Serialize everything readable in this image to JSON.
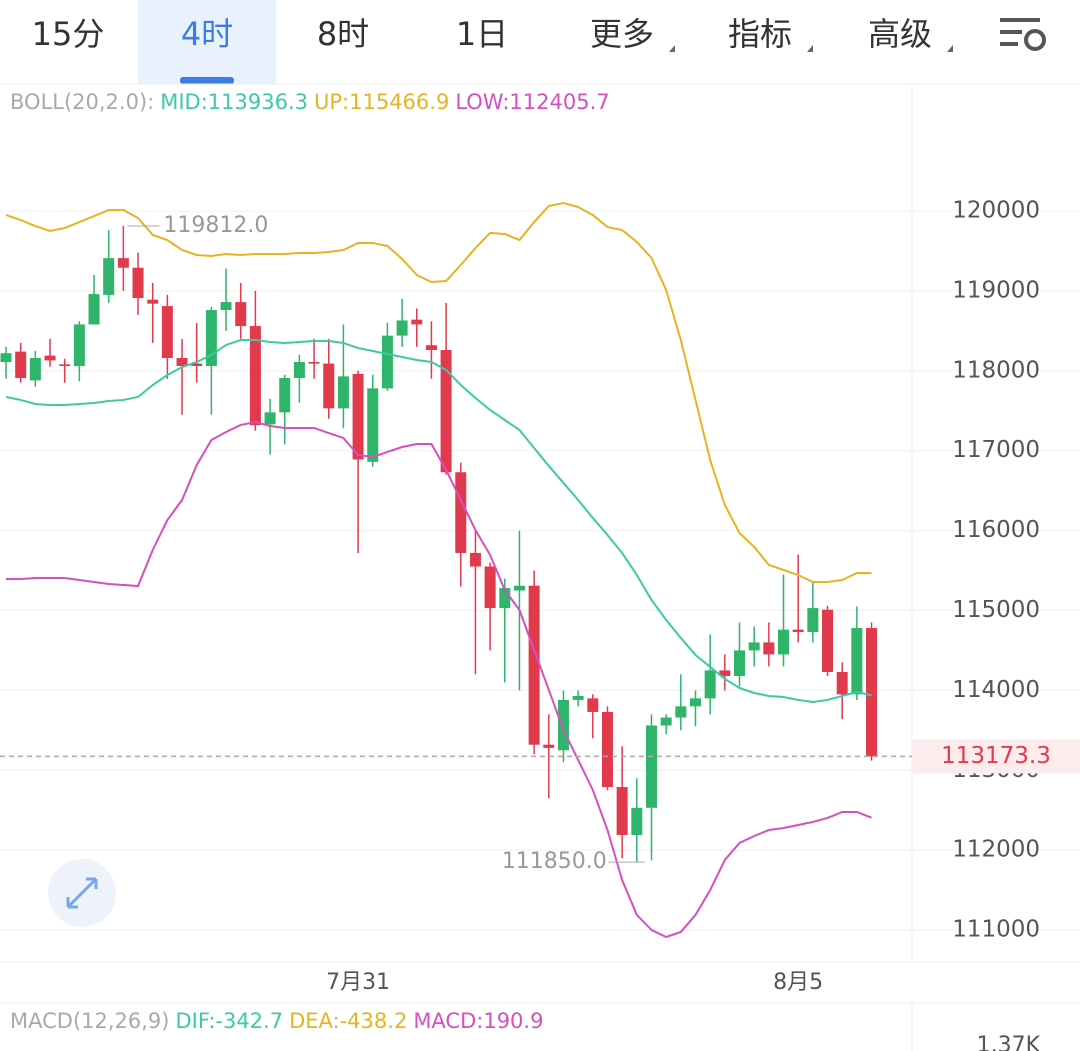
{
  "tabs": [
    "15分",
    "4时",
    "8时",
    "1日",
    "更多",
    "指标",
    "高级"
  ],
  "active_tab": 1,
  "chart_data": {
    "type": "candlestick",
    "indicator": {
      "text": "BOLL(20,2.0):",
      "color": "#a9a9a9"
    },
    "categories": [
      null,
      null,
      null,
      null,
      null,
      null,
      null,
      null,
      null,
      null,
      null,
      null,
      null,
      null,
      null,
      null,
      null,
      null,
      null,
      null,
      null,
      null,
      null,
      null,
      "7月31",
      null,
      null,
      null,
      null,
      null,
      null,
      null,
      null,
      null,
      null,
      null,
      null,
      null,
      null,
      null,
      null,
      null,
      null,
      null,
      null,
      null,
      null,
      null,
      null,
      null,
      null,
      null,
      null,
      null,
      "8月5",
      null,
      null,
      null,
      null,
      null
    ],
    "open": [
      118110,
      118240,
      117880,
      118190,
      118080,
      118060,
      118580,
      118950,
      119410,
      119290,
      118890,
      118810,
      118160,
      118090,
      118060,
      118760,
      118860,
      118560,
      117330,
      117480,
      117910,
      118110,
      118090,
      117530,
      117960,
      116860,
      117780,
      118440,
      118640,
      118320,
      118260,
      116730,
      115720,
      115550,
      115030,
      115250,
      115310,
      113320,
      113250,
      113880,
      113900,
      113730,
      112790,
      112190,
      112530,
      113560,
      113660,
      113800,
      113900,
      114250,
      114180,
      114500,
      114600,
      114450,
      114760,
      114730,
      115010,
      114230,
      113950,
      114780
    ],
    "high": [
      118300,
      118350,
      118250,
      118400,
      118150,
      118620,
      119200,
      119760,
      119812,
      119480,
      119100,
      118950,
      118400,
      118600,
      118800,
      119280,
      119100,
      119000,
      117650,
      117950,
      118200,
      118400,
      118400,
      118580,
      118000,
      117950,
      118600,
      118900,
      118780,
      118620,
      118850,
      116850,
      116000,
      115600,
      115400,
      116000,
      115500,
      113700,
      114000,
      114000,
      113950,
      113800,
      113300,
      112900,
      113700,
      113700,
      114200,
      114000,
      114700,
      114450,
      114850,
      114800,
      114850,
      115450,
      115700,
      115350,
      115060,
      114350,
      115050,
      114850
    ],
    "low": [
      117900,
      117850,
      117800,
      118050,
      117850,
      117870,
      118580,
      118850,
      119000,
      118700,
      118350,
      117900,
      117450,
      117850,
      117450,
      118500,
      118400,
      117250,
      116950,
      117080,
      117600,
      117900,
      117400,
      117280,
      115720,
      116800,
      117750,
      118300,
      118300,
      117900,
      116700,
      115300,
      114200,
      114500,
      114100,
      114000,
      113200,
      112650,
      113100,
      113800,
      113400,
      112750,
      111900,
      111850,
      111870,
      113450,
      113500,
      113550,
      113700,
      114000,
      114050,
      114300,
      114300,
      114300,
      114600,
      114600,
      114180,
      113640,
      113880,
      113120
    ],
    "close": [
      118220,
      117910,
      118160,
      118130,
      118060,
      118580,
      118960,
      119410,
      119290,
      118910,
      118840,
      118160,
      118060,
      118060,
      118760,
      118860,
      118560,
      117320,
      117480,
      117910,
      118110,
      118090,
      117530,
      117930,
      116890,
      117780,
      118440,
      118630,
      118580,
      118260,
      116730,
      115720,
      115550,
      115030,
      115280,
      115310,
      113320,
      113280,
      113880,
      113930,
      113730,
      112790,
      112190,
      112530,
      113560,
      113660,
      113800,
      113900,
      114250,
      114180,
      114500,
      114600,
      114450,
      114760,
      114730,
      115030,
      114230,
      113950,
      114780,
      113173.3
    ],
    "up_color": "#2fb56a",
    "down_color": "#e03a4c",
    "series": [
      {
        "name": "MID:113936.3",
        "color": "#3dc9a7",
        "values": [
          117672,
          117635,
          117584,
          117572,
          117572,
          117584,
          117597,
          117622,
          117635,
          117672,
          117822,
          117947,
          118047,
          118110,
          118198,
          118323,
          118385,
          118385,
          118360,
          118348,
          118360,
          118373,
          118373,
          118348,
          118285,
          118248,
          118210,
          118173,
          118135,
          118110,
          118010,
          117822,
          117659,
          117509,
          117384,
          117259,
          117034,
          116809,
          116596,
          116383,
          116158,
          115945,
          115720,
          115444,
          115131,
          114881,
          114656,
          114443,
          114293,
          114143,
          114030,
          113967,
          113930,
          113917,
          113880,
          113855,
          113880,
          113930,
          113980,
          113936.3
        ]
      },
      {
        "name": "UP:115466.9",
        "color": "#e8b320",
        "values": [
          119950,
          119887,
          119812,
          119750,
          119787,
          119862,
          119937,
          120012,
          120012,
          119912,
          119700,
          119637,
          119512,
          119449,
          119437,
          119462,
          119449,
          119462,
          119462,
          119462,
          119474,
          119474,
          119487,
          119512,
          119600,
          119600,
          119562,
          119399,
          119199,
          119111,
          119124,
          119324,
          119537,
          119725,
          119712,
          119637,
          119862,
          120063,
          120100,
          120050,
          119950,
          119800,
          119762,
          119612,
          119412,
          119011,
          118385,
          117635,
          116884,
          116320,
          115970,
          115795,
          115570,
          115507,
          115444,
          115356,
          115356,
          115381,
          115469,
          115466.9
        ]
      },
      {
        "name": "LOW:112405.7",
        "color": "#d64fc0",
        "values": [
          115394,
          115394,
          115406,
          115406,
          115406,
          115381,
          115356,
          115331,
          115319,
          115306,
          115757,
          116132,
          116383,
          116821,
          117134,
          117234,
          117322,
          117359,
          117309,
          117284,
          117284,
          117284,
          117221,
          117159,
          116946,
          116921,
          116984,
          117046,
          117084,
          117084,
          116759,
          116383,
          116007,
          115694,
          115256,
          115006,
          114506,
          114005,
          113504,
          113129,
          112753,
          112252,
          111626,
          111189,
          111001,
          110913,
          110976,
          111189,
          111501,
          111877,
          112090,
          112177,
          112252,
          112277,
          112315,
          112353,
          112403,
          112478,
          112478,
          112405.7
        ]
      }
    ],
    "ylim": [
      110600,
      121577
    ],
    "yticks": [
      111000,
      112000,
      113000,
      114000,
      115000,
      116000,
      117000,
      118000,
      119000,
      120000
    ],
    "grid": true,
    "last_price": 113173.3,
    "max_label": {
      "value": 119812,
      "label": "119812.0"
    },
    "min_label": {
      "value": 111850,
      "label": "111850.0"
    },
    "macd_header": [
      {
        "text": "MACD(12,26,9)",
        "color": "#a9a9a9"
      },
      {
        "text": "DIF:-342.7",
        "color": "#3dc9a7"
      },
      {
        "text": "DEA:-438.2",
        "color": "#e8b320"
      },
      {
        "text": "MACD:190.9",
        "color": "#d64fc0"
      }
    ],
    "macd_tick": "1.37K"
  }
}
